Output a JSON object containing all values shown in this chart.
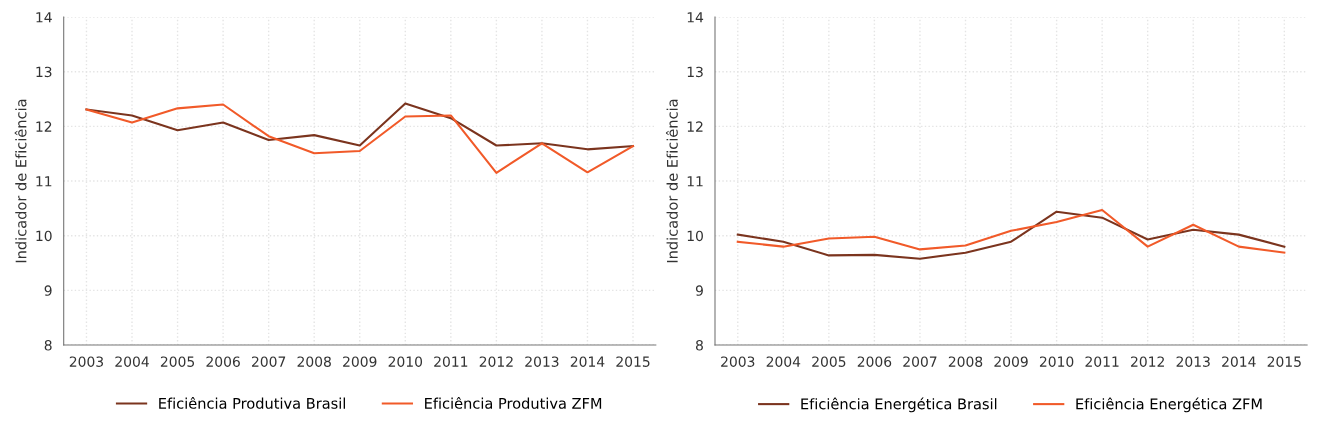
{
  "chart_data": [
    {
      "type": "line",
      "ylabel": "Indicador de Eficiência",
      "categories": [
        "2003",
        "2004",
        "2005",
        "2006",
        "2007",
        "2008",
        "2009",
        "2010",
        "2011",
        "2012",
        "2013",
        "2014",
        "2015"
      ],
      "ylim": [
        8,
        14
      ],
      "yticks": [
        8,
        9,
        10,
        11,
        12,
        13,
        14
      ],
      "grid": true,
      "legend": "bottom",
      "series": [
        {
          "name": "Eficiência Produtiva Brasil",
          "color": "#7b341e",
          "values": [
            12.31,
            12.2,
            11.93,
            12.07,
            11.75,
            11.84,
            11.65,
            12.42,
            12.15,
            11.65,
            11.69,
            11.58,
            11.64
          ]
        },
        {
          "name": "Eficiência Produtiva ZFM",
          "color": "#f15a29",
          "values": [
            12.31,
            12.07,
            12.33,
            12.4,
            11.82,
            11.51,
            11.55,
            12.18,
            12.2,
            11.15,
            11.69,
            11.16,
            11.64
          ]
        }
      ]
    },
    {
      "type": "line",
      "ylabel": "Indicador de Eficiência",
      "categories": [
        "2003",
        "2004",
        "2005",
        "2006",
        "2007",
        "2008",
        "2009",
        "2010",
        "2011",
        "2012",
        "2013",
        "2014",
        "2015"
      ],
      "ylim": [
        8,
        14
      ],
      "yticks": [
        8,
        9,
        10,
        11,
        12,
        13,
        14
      ],
      "grid": true,
      "legend": "bottom",
      "series": [
        {
          "name": "Eficiência Energética Brasil",
          "color": "#7b341e",
          "values": [
            10.02,
            9.89,
            9.64,
            9.65,
            9.58,
            9.69,
            9.89,
            10.44,
            10.33,
            9.93,
            10.11,
            10.02,
            9.8
          ]
        },
        {
          "name": "Eficiência Energética ZFM",
          "color": "#f15a29",
          "values": [
            9.89,
            9.8,
            9.95,
            9.98,
            9.75,
            9.82,
            10.09,
            10.25,
            10.47,
            9.8,
            10.2,
            9.8,
            9.69
          ]
        }
      ]
    }
  ]
}
